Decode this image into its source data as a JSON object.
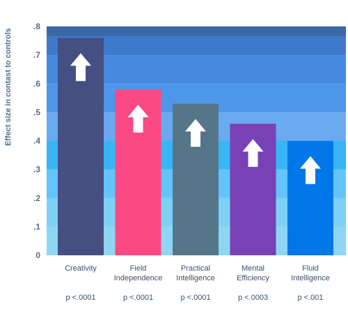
{
  "chart_data": {
    "type": "bar",
    "title": "",
    "ylabel": "Effect size in contast to controls",
    "ylim": [
      0,
      0.8
    ],
    "yticks": [
      {
        "value": 0,
        "label": "0"
      },
      {
        "value": 0.1,
        "label": ".1"
      },
      {
        "value": 0.2,
        "label": ".2"
      },
      {
        "value": 0.3,
        "label": ".3"
      },
      {
        "value": 0.4,
        "label": ".4"
      },
      {
        "value": 0.5,
        "label": ".5"
      },
      {
        "value": 0.6,
        "label": ".6"
      },
      {
        "value": 0.7,
        "label": ".7"
      },
      {
        "value": 0.8,
        "label": ".8"
      }
    ],
    "categories": [
      {
        "lines": [
          "Creativity"
        ],
        "name": "Creativity"
      },
      {
        "lines": [
          "Field",
          "Independence"
        ],
        "name": "Field Independence"
      },
      {
        "lines": [
          "Practical",
          "Intelligence"
        ],
        "name": "Practical Intelligence"
      },
      {
        "lines": [
          "Mental",
          "Efficiency"
        ],
        "name": "Mental Efficiency"
      },
      {
        "lines": [
          "Fluid",
          "Intelligence"
        ],
        "name": "Fluid Intelligence"
      }
    ],
    "values": [
      0.76,
      0.58,
      0.53,
      0.46,
      0.4
    ],
    "p_values": [
      "p <.0001",
      "p <.0001",
      "p <.0001",
      "p <.0003",
      "p <.001"
    ],
    "bar_colors": [
      "#464f82",
      "#fb4983",
      "#557688",
      "#7841b5",
      "#0077e8"
    ],
    "band_colors": [
      "#8fd6f4",
      "#7ed1f6",
      "#62c4fb",
      "#37b5f5",
      "#6aaaf0",
      "#4e96ea",
      "#4589e0",
      "#3e79cb"
    ],
    "top_band_color": "#3a68a8",
    "arrow_color": "#ffffff",
    "grid": false
  }
}
